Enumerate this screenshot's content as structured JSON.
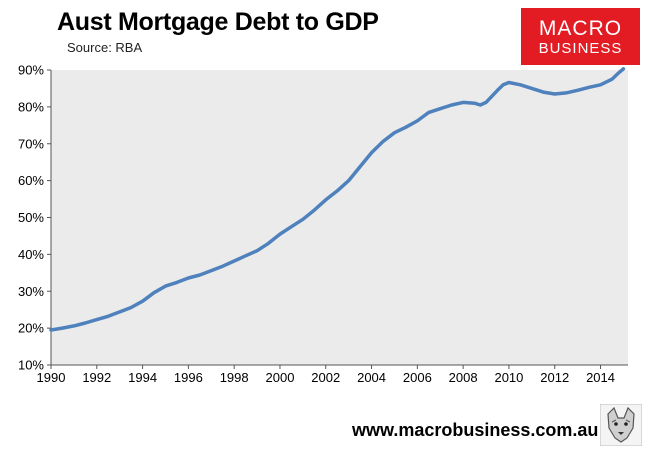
{
  "title": "Aust Mortgage Debt to GDP",
  "subtitle": "Source: RBA",
  "logo": {
    "line1": "MACRO",
    "line2": "BUSINESS",
    "color": "#e31b23"
  },
  "footer": {
    "url": "www.macrobusiness.com.au",
    "mascot_icon": "wolf-icon"
  },
  "colors": {
    "series": "#4f81bd",
    "plot_bg": "#ebebeb"
  },
  "chart_data": {
    "type": "line",
    "xlabel": "",
    "ylabel": "",
    "xlim": [
      1990,
      2015.2
    ],
    "ylim": [
      10,
      90
    ],
    "grid": false,
    "legend": "none",
    "x_ticks": [
      {
        "value": 1990,
        "label": "1990"
      },
      {
        "value": 1992,
        "label": "1992"
      },
      {
        "value": 1994,
        "label": "1994"
      },
      {
        "value": 1996,
        "label": "1996"
      },
      {
        "value": 1998,
        "label": "1998"
      },
      {
        "value": 2000,
        "label": "2000"
      },
      {
        "value": 2002,
        "label": "2002"
      },
      {
        "value": 2004,
        "label": "2004"
      },
      {
        "value": 2006,
        "label": "2006"
      },
      {
        "value": 2008,
        "label": "2008"
      },
      {
        "value": 2010,
        "label": "2010"
      },
      {
        "value": 2012,
        "label": "2012"
      },
      {
        "value": 2014,
        "label": "2014"
      }
    ],
    "y_ticks": [
      {
        "value": 10,
        "label": "10%"
      },
      {
        "value": 20,
        "label": "20%"
      },
      {
        "value": 30,
        "label": "30%"
      },
      {
        "value": 40,
        "label": "40%"
      },
      {
        "value": 50,
        "label": "50%"
      },
      {
        "value": 60,
        "label": "60%"
      },
      {
        "value": 70,
        "label": "70%"
      },
      {
        "value": 80,
        "label": "80%"
      },
      {
        "value": 90,
        "label": "90%"
      }
    ],
    "series": [
      {
        "points": [
          [
            1990.0,
            19.5
          ],
          [
            1990.5,
            20.0
          ],
          [
            1991.0,
            20.6
          ],
          [
            1991.5,
            21.4
          ],
          [
            1992.0,
            22.3
          ],
          [
            1992.5,
            23.2
          ],
          [
            1993.0,
            24.4
          ],
          [
            1993.5,
            25.6
          ],
          [
            1994.0,
            27.3
          ],
          [
            1994.5,
            29.6
          ],
          [
            1995.0,
            31.4
          ],
          [
            1995.5,
            32.4
          ],
          [
            1996.0,
            33.6
          ],
          [
            1996.5,
            34.4
          ],
          [
            1997.0,
            35.6
          ],
          [
            1997.5,
            36.8
          ],
          [
            1998.0,
            38.2
          ],
          [
            1998.5,
            39.6
          ],
          [
            1999.0,
            41.0
          ],
          [
            1999.5,
            43.0
          ],
          [
            2000.0,
            45.5
          ],
          [
            2000.5,
            47.5
          ],
          [
            2001.0,
            49.5
          ],
          [
            2001.5,
            52.0
          ],
          [
            2002.0,
            54.8
          ],
          [
            2002.5,
            57.2
          ],
          [
            2003.0,
            60.0
          ],
          [
            2003.5,
            63.8
          ],
          [
            2004.0,
            67.6
          ],
          [
            2004.5,
            70.6
          ],
          [
            2005.0,
            73.0
          ],
          [
            2005.5,
            74.5
          ],
          [
            2006.0,
            76.2
          ],
          [
            2006.5,
            78.5
          ],
          [
            2007.0,
            79.5
          ],
          [
            2007.5,
            80.5
          ],
          [
            2008.0,
            81.2
          ],
          [
            2008.5,
            81.0
          ],
          [
            2008.75,
            80.5
          ],
          [
            2009.0,
            81.2
          ],
          [
            2009.5,
            84.5
          ],
          [
            2009.75,
            86.0
          ],
          [
            2010.0,
            86.6
          ],
          [
            2010.5,
            86.0
          ],
          [
            2011.0,
            85.0
          ],
          [
            2011.5,
            84.0
          ],
          [
            2012.0,
            83.5
          ],
          [
            2012.5,
            83.8
          ],
          [
            2013.0,
            84.5
          ],
          [
            2013.5,
            85.3
          ],
          [
            2014.0,
            86.0
          ],
          [
            2014.5,
            87.5
          ],
          [
            2014.75,
            89.0
          ],
          [
            2015.0,
            90.3
          ]
        ]
      }
    ]
  }
}
